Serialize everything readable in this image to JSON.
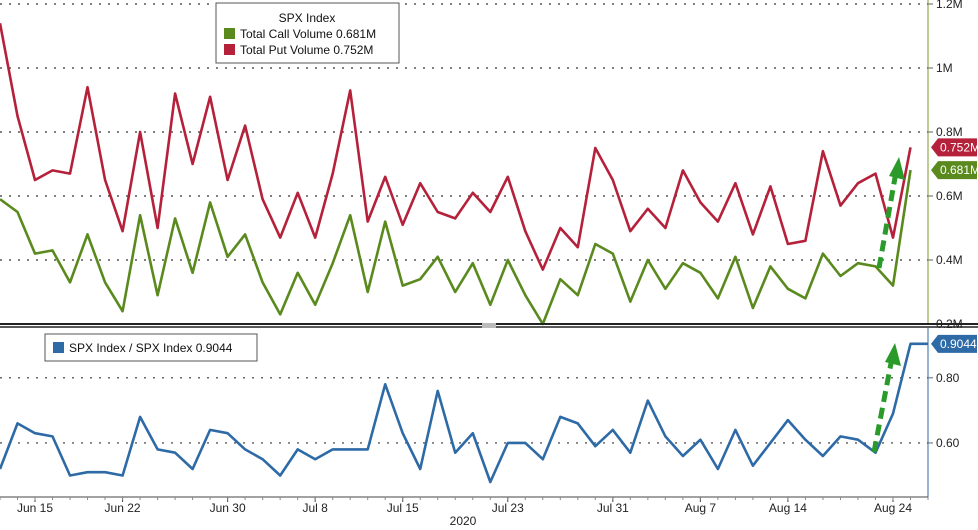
{
  "chart_data": [
    {
      "type": "line",
      "title": "SPX Index",
      "xlabel": "",
      "ylabel": "",
      "y_unit_suffix": "M",
      "ylim": [
        0.1,
        1.2
      ],
      "yticks": [
        0.2,
        0.4,
        0.6,
        0.8,
        1.0,
        1.2
      ],
      "ytick_labels": [
        "0.2M",
        "0.4M",
        "0.6M",
        "0.8M",
        "1M",
        "1.2M"
      ],
      "grid": true,
      "legend_placement": "top-left",
      "series": [
        {
          "name": "Total Call Volume",
          "legend_label": "Total Call Volume 0.681M",
          "last_value_label": "0.681M",
          "color": "#5a8a1e",
          "values": [
            0.59,
            0.55,
            0.42,
            0.43,
            0.33,
            0.48,
            0.33,
            0.24,
            0.54,
            0.29,
            0.53,
            0.36,
            0.58,
            0.41,
            0.48,
            0.33,
            0.23,
            0.36,
            0.26,
            0.39,
            0.54,
            0.3,
            0.52,
            0.32,
            0.34,
            0.41,
            0.3,
            0.39,
            0.26,
            0.4,
            0.29,
            0.2,
            0.34,
            0.29,
            0.45,
            0.42,
            0.27,
            0.4,
            0.31,
            0.39,
            0.36,
            0.28,
            0.41,
            0.25,
            0.38,
            0.31,
            0.28,
            0.42,
            0.35,
            0.39,
            0.38,
            0.32,
            0.681
          ]
        },
        {
          "name": "Total Put Volume",
          "legend_label": "Total Put Volume 0.752M",
          "last_value_label": "0.752M",
          "color": "#b5213a",
          "values": [
            1.14,
            0.85,
            0.65,
            0.68,
            0.67,
            0.94,
            0.65,
            0.49,
            0.8,
            0.5,
            0.92,
            0.7,
            0.91,
            0.65,
            0.82,
            0.59,
            0.47,
            0.61,
            0.47,
            0.67,
            0.93,
            0.52,
            0.66,
            0.51,
            0.64,
            0.55,
            0.53,
            0.61,
            0.55,
            0.66,
            0.49,
            0.37,
            0.5,
            0.44,
            0.75,
            0.65,
            0.49,
            0.56,
            0.5,
            0.68,
            0.58,
            0.52,
            0.64,
            0.48,
            0.63,
            0.45,
            0.46,
            0.74,
            0.57,
            0.64,
            0.67,
            0.47,
            0.752
          ]
        }
      ]
    },
    {
      "type": "line",
      "title": "",
      "xlabel": "",
      "ylabel": "",
      "ylim": [
        0.48,
        0.95
      ],
      "yticks": [
        0.6,
        0.8
      ],
      "ytick_labels": [
        "0.60",
        "0.80"
      ],
      "grid": true,
      "legend_placement": "top-left",
      "x_tick_labels": [
        "Jun 15",
        "Jun 22",
        "Jun 30",
        "Jul 8",
        "Jul 15",
        "Jul 23",
        "Jul 31",
        "Aug 7",
        "Aug 14",
        "Aug 24"
      ],
      "x_tick_index": [
        2,
        7,
        13,
        18,
        23,
        29,
        35,
        40,
        45,
        51
      ],
      "x_year_label": "2020",
      "series": [
        {
          "name": "SPX Index / SPX Index",
          "legend_label": "SPX Index / SPX Index 0.9044",
          "last_value_label": "0.9044",
          "color": "#2e6aa6",
          "values": [
            0.52,
            0.66,
            0.63,
            0.62,
            0.5,
            0.51,
            0.51,
            0.5,
            0.68,
            0.58,
            0.57,
            0.52,
            0.64,
            0.63,
            0.58,
            0.55,
            0.5,
            0.58,
            0.55,
            0.58,
            0.58,
            0.58,
            0.78,
            0.63,
            0.52,
            0.76,
            0.57,
            0.63,
            0.48,
            0.6,
            0.6,
            0.55,
            0.68,
            0.66,
            0.59,
            0.64,
            0.57,
            0.73,
            0.62,
            0.56,
            0.61,
            0.52,
            0.64,
            0.53,
            0.6,
            0.67,
            0.61,
            0.56,
            0.62,
            0.61,
            0.57,
            0.69,
            0.9044,
            0.9044
          ]
        }
      ]
    }
  ]
}
